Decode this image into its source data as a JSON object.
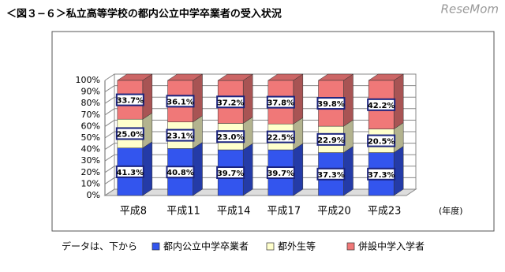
{
  "chart_data": {
    "type": "bar3d_stacked",
    "title": "＜図３−６＞私立高等学校の都内公立中学卒業者の受入状況",
    "watermark": "ReseMom",
    "x_unit": "(年度)",
    "legend_title": "データは、下から",
    "categories": [
      "平成8",
      "平成11",
      "平成14",
      "平成17",
      "平成20",
      "平成23"
    ],
    "series": [
      {
        "name": "都内公立中学卒業者",
        "color": "#3355ee",
        "values": [
          41.3,
          40.8,
          39.7,
          39.7,
          37.3,
          37.3
        ],
        "value_labels": [
          "41.3%",
          "40.8%",
          "39.7%",
          "39.7%",
          "37.3%",
          "37.3%"
        ]
      },
      {
        "name": "都外生等",
        "color": "#ffffcc",
        "values": [
          25.0,
          23.1,
          23.0,
          22.5,
          22.9,
          20.5
        ],
        "value_labels": [
          "25.0%",
          "23.1%",
          "23.0%",
          "22.5%",
          "22.9%",
          "20.5%"
        ]
      },
      {
        "name": "併設中学入学者",
        "color": "#f07878",
        "values": [
          33.7,
          36.1,
          37.2,
          37.8,
          39.8,
          42.2
        ],
        "value_labels": [
          "33.7%",
          "36.1%",
          "37.2%",
          "37.8%",
          "39.8%",
          "42.2%"
        ]
      }
    ],
    "ylim": [
      0,
      100
    ],
    "yticks": [
      {
        "value": 0,
        "label": "0%"
      },
      {
        "value": 10,
        "label": "10%"
      },
      {
        "value": 20,
        "label": "20%"
      },
      {
        "value": 30,
        "label": "30%"
      },
      {
        "value": 40,
        "label": "40%"
      },
      {
        "value": 50,
        "label": "50%"
      },
      {
        "value": 60,
        "label": "60%"
      },
      {
        "value": 70,
        "label": "70%"
      },
      {
        "value": 80,
        "label": "80%"
      },
      {
        "value": 90,
        "label": "90%"
      },
      {
        "value": 100,
        "label": "100%"
      }
    ],
    "grid": true
  }
}
